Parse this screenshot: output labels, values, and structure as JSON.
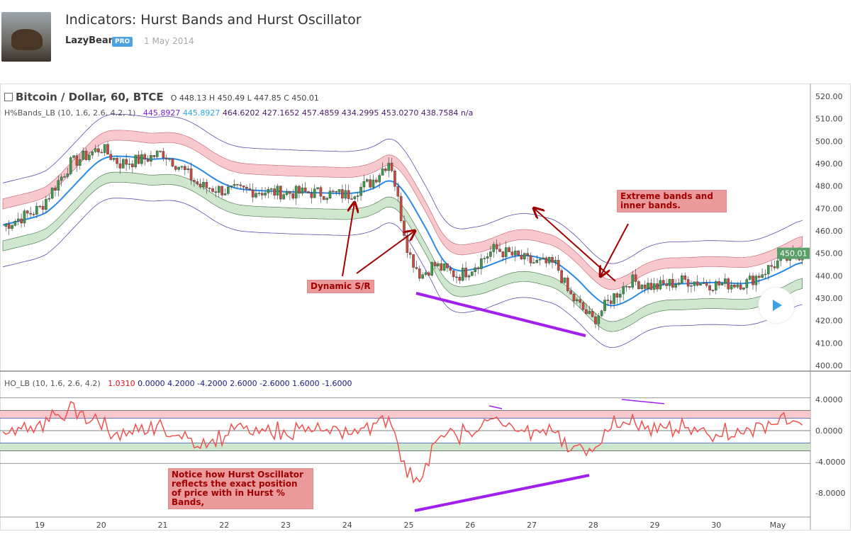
{
  "header": {
    "title": "Indicators: Hurst Bands and Hurst Oscillator",
    "author": "LazyBear",
    "badge": "PRO",
    "date": "1 May 2014"
  },
  "legend": {
    "symbol": "Bitcoin / Dollar, 60, BTCE",
    "ohlc": "O 448.13 H 450.49 L 447.85 C 450.01",
    "bands_name": "H%Bands_LB (10, 1.6, 2.6, 4.2, 1)",
    "bands_vals": [
      "445.8927",
      "445.8927",
      "464.6202",
      "427.1652",
      "457.4859",
      "434.2995",
      "453.0270",
      "438.7584",
      "n/a"
    ],
    "osc_name": "HO_LB (10, 1.6, 2.6, 4.2)",
    "osc_vals": [
      "1.0310",
      "0.0000",
      "4.2000",
      "-4.2000",
      "2.6000",
      "-2.6000",
      "1.6000",
      "-1.6000"
    ]
  },
  "notes": {
    "extreme": "Extreme bands and inner bands.",
    "sr": "Dynamic S/R",
    "osc": "Notice how Hurst Oscillator reflects the exact position of price with in Hurst % Bands,"
  },
  "colors": {
    "up": "#3c9b4a",
    "down": "#c94a3f",
    "mid": "#2a8ae8",
    "outer": "#5d4bb0",
    "upper_fill": "#f7c8cc",
    "lower_fill": "#cfe6cf",
    "osc": "#f0524f",
    "div": "#a020f0"
  },
  "chart_data": {
    "type": "line",
    "price_axis": {
      "ticks": [
        "520.00",
        "510.00",
        "500.00",
        "490.00",
        "480.00",
        "470.00",
        "460.00",
        "450.00",
        "440.00",
        "430.00",
        "420.00",
        "410.00",
        "400.00"
      ],
      "range": [
        400,
        520
      ],
      "last": "450.01"
    },
    "osc_axis": {
      "ticks": [
        "4.0000",
        "0.0000",
        "-4.0000",
        "-8.0000"
      ],
      "range": [
        -10.5,
        5.5
      ]
    },
    "x_labels": [
      "19",
      "20",
      "21",
      "22",
      "23",
      "24",
      "25",
      "26",
      "27",
      "28",
      "29",
      "30",
      "May"
    ],
    "x_label_pos": [
      1,
      2,
      3,
      4,
      5,
      6,
      7,
      8,
      9,
      10,
      11,
      12,
      13
    ],
    "price_t": [
      0.4,
      1,
      1.5,
      2,
      2.3,
      2.7,
      3,
      3.3,
      3.6,
      4,
      4.4,
      5,
      5.5,
      6,
      6.4,
      6.7,
      6.85,
      7,
      7.2,
      7.4,
      7.8,
      8,
      8.4,
      9,
      9.4,
      9.6,
      10,
      10.3,
      10.6,
      11,
      11.5,
      12,
      12.5,
      13,
      13.4
    ],
    "price_close": [
      462,
      470,
      490,
      497,
      490,
      492,
      495,
      488,
      480,
      478,
      478,
      477,
      477,
      476,
      482,
      492,
      470,
      450,
      440,
      445,
      440,
      443,
      452,
      446,
      445,
      432,
      420,
      430,
      438,
      435,
      438,
      436,
      437,
      446,
      450
    ],
    "osc_levels": [
      4.2,
      2.6,
      1.6,
      0,
      -1.6,
      -2.6,
      -4.2
    ]
  }
}
